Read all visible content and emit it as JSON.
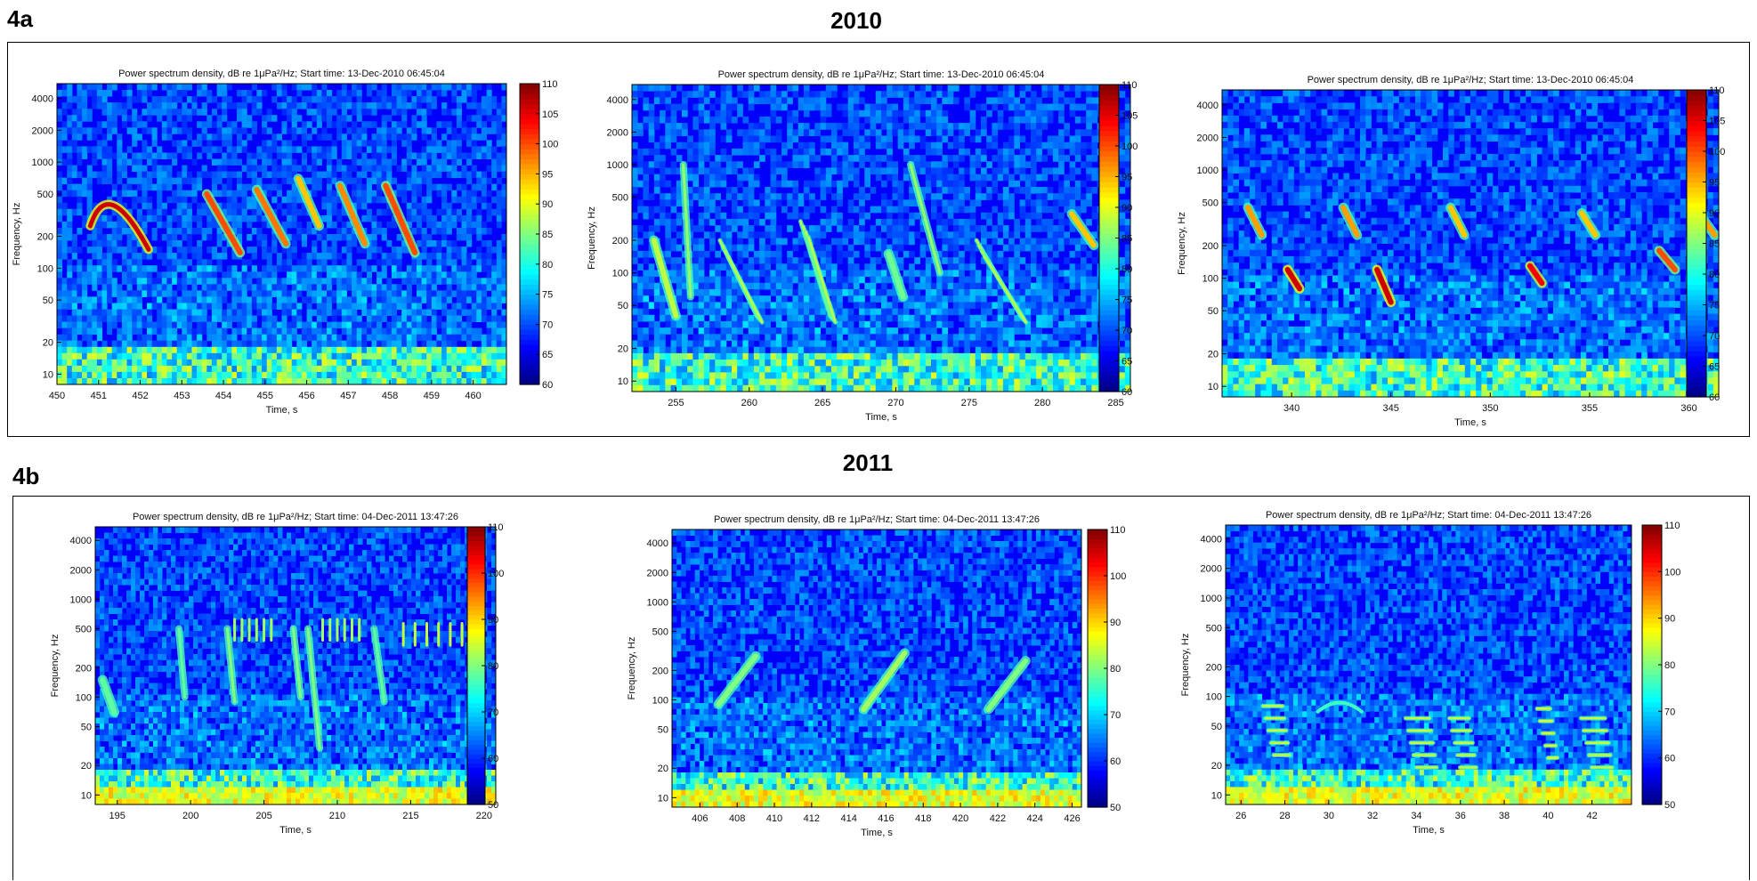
{
  "figure": {
    "panel_a": {
      "label": "4a",
      "year": "2010"
    },
    "panel_b": {
      "label": "4b",
      "year": "2011"
    }
  },
  "chart_data": [
    {
      "type": "heatmap",
      "title": "Power spectrum density, dB re 1μPa²/Hz; Start time: 13-Dec-2010 06:45:04",
      "xlabel": "Time, s",
      "ylabel": "Frequency, Hz",
      "x_ticks": [
        451,
        452,
        453,
        454,
        455,
        456,
        457,
        458,
        459,
        460
      ],
      "x_extra_tick": 450,
      "xlim": [
        450,
        460.8
      ],
      "y_ticks": [
        10,
        20,
        50,
        100,
        200,
        500,
        1000,
        2000,
        4000
      ],
      "ylim": [
        8,
        5500
      ],
      "yscale": "log",
      "colorbar": {
        "min": 60,
        "max": 110,
        "ticks": [
          60,
          65,
          70,
          75,
          80,
          85,
          90,
          95,
          100,
          105,
          110
        ]
      },
      "calls": [
        {
          "t0": 450.8,
          "t1": 452.2,
          "f0": 250,
          "f1": 650,
          "kind": "arc",
          "db": 106
        },
        {
          "t0": 453.6,
          "t1": 454.4,
          "f0": 500,
          "f1": 140,
          "kind": "down",
          "db": 100
        },
        {
          "t0": 454.8,
          "t1": 455.5,
          "f0": 550,
          "f1": 170,
          "kind": "down",
          "db": 98
        },
        {
          "t0": 455.8,
          "t1": 456.3,
          "f0": 700,
          "f1": 250,
          "kind": "down",
          "db": 94
        },
        {
          "t0": 456.8,
          "t1": 457.4,
          "f0": 600,
          "f1": 170,
          "kind": "down",
          "db": 97
        },
        {
          "t0": 457.9,
          "t1": 458.6,
          "f0": 600,
          "f1": 140,
          "kind": "down",
          "db": 100
        }
      ]
    },
    {
      "type": "heatmap",
      "title": "Power spectrum density, dB re 1μPa²/Hz; Start time: 13-Dec-2010 06:45:04",
      "xlabel": "Time, s",
      "ylabel": "Frequency, Hz",
      "x_ticks": [
        255,
        260,
        265,
        270,
        275,
        280,
        285
      ],
      "xlim": [
        252,
        286
      ],
      "y_ticks": [
        10,
        20,
        50,
        100,
        200,
        500,
        1000,
        2000,
        4000
      ],
      "ylim": [
        8,
        5500
      ],
      "yscale": "log",
      "colorbar": {
        "min": 60,
        "max": 110,
        "ticks": [
          60,
          65,
          70,
          75,
          80,
          85,
          90,
          95,
          100,
          105,
          110
        ]
      },
      "calls": [
        {
          "t0": 253.5,
          "t1": 255.0,
          "f0": 200,
          "f1": 40,
          "kind": "down",
          "db": 88
        },
        {
          "t0": 255.5,
          "t1": 256.0,
          "f0": 1000,
          "f1": 60,
          "kind": "vert",
          "db": 86
        },
        {
          "t0": 258.0,
          "t1": 261.0,
          "f0": 200,
          "f1": 40,
          "kind": "multi",
          "db": 88
        },
        {
          "t0": 263.5,
          "t1": 266.0,
          "f0": 300,
          "f1": 40,
          "kind": "multi",
          "db": 88
        },
        {
          "t0": 269.5,
          "t1": 270.5,
          "f0": 150,
          "f1": 60,
          "kind": "down",
          "db": 84
        },
        {
          "t0": 271.0,
          "t1": 273.0,
          "f0": 1000,
          "f1": 100,
          "kind": "vert",
          "db": 86
        },
        {
          "t0": 275.5,
          "t1": 279.0,
          "f0": 200,
          "f1": 40,
          "kind": "multi",
          "db": 88
        },
        {
          "t0": 282.0,
          "t1": 283.5,
          "f0": 350,
          "f1": 180,
          "kind": "down",
          "db": 94
        }
      ]
    },
    {
      "type": "heatmap",
      "title": "Power spectrum density, dB re 1μPa²/Hz; Start time: 13-Dec-2010 06:45:04",
      "xlabel": "Time, s",
      "ylabel": "Frequency, Hz",
      "x_ticks": [
        340,
        345,
        350,
        355,
        360
      ],
      "xlim": [
        336.5,
        361.5
      ],
      "y_ticks": [
        10,
        20,
        50,
        100,
        200,
        500,
        1000,
        2000,
        4000
      ],
      "ylim": [
        8,
        5500
      ],
      "yscale": "log",
      "colorbar": {
        "min": 60,
        "max": 110,
        "ticks": [
          60,
          65,
          70,
          75,
          80,
          85,
          90,
          95,
          100,
          105,
          110
        ]
      },
      "calls": [
        {
          "t0": 337.8,
          "t1": 338.5,
          "f0": 450,
          "f1": 250,
          "kind": "down",
          "db": 96
        },
        {
          "t0": 339.8,
          "t1": 340.4,
          "f0": 120,
          "f1": 80,
          "kind": "down",
          "db": 106
        },
        {
          "t0": 342.6,
          "t1": 343.3,
          "f0": 450,
          "f1": 250,
          "kind": "down",
          "db": 96
        },
        {
          "t0": 344.3,
          "t1": 345.0,
          "f0": 120,
          "f1": 60,
          "kind": "down",
          "db": 106
        },
        {
          "t0": 348.0,
          "t1": 348.7,
          "f0": 450,
          "f1": 250,
          "kind": "down",
          "db": 94
        },
        {
          "t0": 352.0,
          "t1": 352.6,
          "f0": 130,
          "f1": 90,
          "kind": "down",
          "db": 104
        },
        {
          "t0": 354.6,
          "t1": 355.3,
          "f0": 400,
          "f1": 250,
          "kind": "down",
          "db": 94
        },
        {
          "t0": 358.5,
          "t1": 359.3,
          "f0": 180,
          "f1": 120,
          "kind": "down",
          "db": 100
        },
        {
          "t0": 360.5,
          "t1": 361.3,
          "f0": 400,
          "f1": 250,
          "kind": "down",
          "db": 96
        }
      ]
    },
    {
      "type": "heatmap",
      "title": "Power spectrum density, dB re 1μPa²/Hz; Start time: 04-Dec-2011 13:47:26",
      "xlabel": "Time, s",
      "ylabel": "Frequency, Hz",
      "x_ticks": [
        195,
        200,
        205,
        210,
        215,
        220
      ],
      "xlim": [
        193.5,
        220.8
      ],
      "y_ticks": [
        10,
        20,
        50,
        100,
        200,
        500,
        1000,
        2000,
        4000
      ],
      "ylim": [
        8,
        5500
      ],
      "yscale": "log",
      "colorbar": {
        "min": 50,
        "max": 110,
        "ticks": [
          50,
          60,
          70,
          80,
          90,
          100,
          110
        ]
      },
      "calls": [
        {
          "t0": 194.0,
          "t1": 194.8,
          "f0": 150,
          "f1": 70,
          "kind": "down",
          "db": 78
        },
        {
          "t0": 199.2,
          "t1": 199.6,
          "f0": 500,
          "f1": 100,
          "kind": "vert",
          "db": 78
        },
        {
          "t0": 202.5,
          "t1": 203.0,
          "f0": 500,
          "f1": 90,
          "kind": "vert",
          "db": 80
        },
        {
          "t0": 203.0,
          "t1": 205.5,
          "f0": 550,
          "f1": 450,
          "kind": "pulses",
          "db": 82
        },
        {
          "t0": 207.0,
          "t1": 207.5,
          "f0": 500,
          "f1": 100,
          "kind": "vert",
          "db": 80
        },
        {
          "t0": 208.0,
          "t1": 208.8,
          "f0": 500,
          "f1": 30,
          "kind": "vert",
          "db": 80
        },
        {
          "t0": 209.0,
          "t1": 211.5,
          "f0": 550,
          "f1": 450,
          "kind": "pulses",
          "db": 82
        },
        {
          "t0": 212.5,
          "t1": 213.2,
          "f0": 500,
          "f1": 90,
          "kind": "vert",
          "db": 78
        },
        {
          "t0": 214.5,
          "t1": 218.5,
          "f0": 500,
          "f1": 400,
          "kind": "pulses",
          "db": 84
        }
      ]
    },
    {
      "type": "heatmap",
      "title": "Power spectrum density, dB re 1μPa²/Hz; Start time: 04-Dec-2011 13:47:26",
      "xlabel": "Time, s",
      "ylabel": "Frequency, Hz",
      "x_ticks": [
        406,
        408,
        410,
        412,
        414,
        416,
        418,
        420,
        422,
        424,
        426
      ],
      "xlim": [
        404.5,
        426.5
      ],
      "y_ticks": [
        10,
        20,
        50,
        100,
        200,
        500,
        1000,
        2000,
        4000
      ],
      "ylim": [
        8,
        5500
      ],
      "yscale": "log",
      "colorbar": {
        "min": 50,
        "max": 110,
        "ticks": [
          50,
          60,
          70,
          80,
          90,
          100,
          110
        ]
      },
      "calls": [
        {
          "t0": 407.0,
          "t1": 409.0,
          "f0": 90,
          "f1": 280,
          "kind": "up",
          "db": 80
        },
        {
          "t0": 414.8,
          "t1": 417.0,
          "f0": 80,
          "f1": 300,
          "kind": "up",
          "db": 82
        },
        {
          "t0": 421.5,
          "t1": 423.5,
          "f0": 80,
          "f1": 250,
          "kind": "up",
          "db": 80
        }
      ]
    },
    {
      "type": "heatmap",
      "title": "Power spectrum density, dB re 1μPa²/Hz; Start time: 04-Dec-2011 13:47:26",
      "xlabel": "Time, s",
      "ylabel": "Frequency, Hz",
      "x_ticks": [
        26,
        28,
        30,
        32,
        34,
        36,
        38,
        40,
        42
      ],
      "xlim": [
        25.3,
        43.8
      ],
      "y_ticks": [
        10,
        20,
        50,
        100,
        200,
        500,
        1000,
        2000,
        4000
      ],
      "ylim": [
        8,
        5500
      ],
      "yscale": "log",
      "colorbar": {
        "min": 50,
        "max": 110,
        "ticks": [
          50,
          60,
          70,
          80,
          90,
          100,
          110
        ]
      },
      "calls": [
        {
          "t0": 27.0,
          "t1": 28.3,
          "f0": 80,
          "f1": 130,
          "kind": "harm",
          "db": 84
        },
        {
          "t0": 29.5,
          "t1": 31.5,
          "f0": 70,
          "f1": 80,
          "kind": "hump",
          "db": 76
        },
        {
          "t0": 33.5,
          "t1": 35.0,
          "f0": 60,
          "f1": 250,
          "kind": "harm",
          "db": 84
        },
        {
          "t0": 35.5,
          "t1": 36.8,
          "f0": 60,
          "f1": 250,
          "kind": "harm",
          "db": 84
        },
        {
          "t0": 39.5,
          "t1": 40.5,
          "f0": 75,
          "f1": 150,
          "kind": "harm",
          "db": 86
        },
        {
          "t0": 41.5,
          "t1": 43.0,
          "f0": 60,
          "f1": 250,
          "kind": "harm",
          "db": 84
        }
      ]
    }
  ]
}
